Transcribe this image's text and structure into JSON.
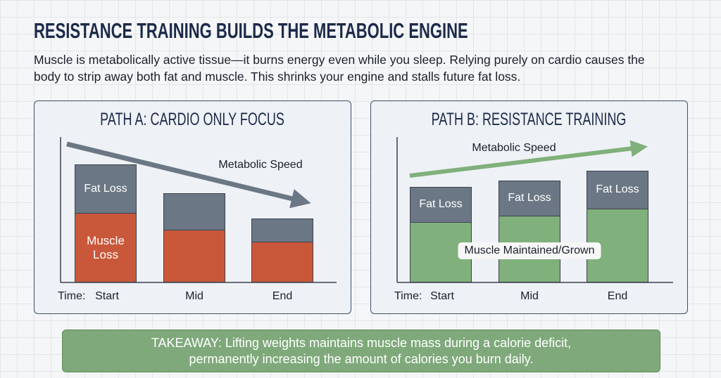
{
  "title": "RESISTANCE TRAINING BUILDS THE METABOLIC ENGINE",
  "intro": "Muscle is metabolically active tissue—it burns energy even while you sleep. Relying purely on cardio causes the body to strip away both fat and muscle. This shrinks your engine and stalls future fat loss.",
  "chart_data": [
    {
      "type": "bar",
      "stacked": true,
      "title": "PATH A: CARDIO ONLY FOCUS",
      "annotation": "Metabolic Speed",
      "xlabel": "Time:",
      "categories": [
        "Start",
        "Mid",
        "End"
      ],
      "series": [
        {
          "name": "Muscle Loss",
          "color": "#c9583a",
          "values": [
            99,
            75,
            58
          ]
        },
        {
          "name": "Fat Loss",
          "color": "#6b7785",
          "values": [
            69,
            52,
            33
          ]
        }
      ],
      "ylim": [
        0,
        210
      ]
    },
    {
      "type": "bar",
      "stacked": true,
      "title": "PATH B: RESISTANCE TRAINING",
      "annotation": "Metabolic Speed",
      "xlabel": "Time:",
      "categories": [
        "Start",
        "Mid",
        "End"
      ],
      "series": [
        {
          "name": "Muscle Maintained/Grown",
          "color": "#80b07b",
          "values": [
            86,
            95,
            105
          ]
        },
        {
          "name": "Fat Loss",
          "color": "#6b7785",
          "values": [
            50,
            50,
            54
          ]
        }
      ],
      "ylim": [
        0,
        210
      ]
    }
  ],
  "takeaway": "TAKEAWAY: Lifting weights maintains muscle mass during a calorie deficit, permanently increasing the amount of calories you burn daily."
}
